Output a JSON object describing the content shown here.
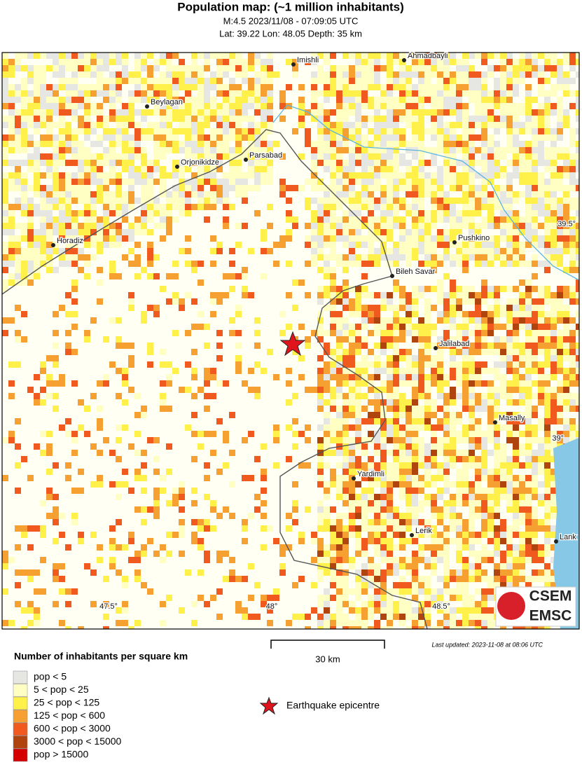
{
  "header": {
    "title": "Population map: (~1 million inhabitants)",
    "line1": "M:4.5 2023/11/08 - 07:09:05 UTC",
    "line2": "Lat: 39.22 Lon: 48.05 Depth: 35 km"
  },
  "map": {
    "cities": [
      "Imishli",
      "Ahmadbayli",
      "Beylagan",
      "Orjonikidze",
      "Parsabad",
      "Horadiz",
      "Pushkino",
      "Bileh Savar",
      "Jalilabad",
      "Masally",
      "Yardimli",
      "Lerik",
      "Lank"
    ],
    "lat_labels": [
      "39.5°",
      "39°"
    ],
    "lon_labels": [
      "47.5°",
      "48°",
      "48.5°"
    ],
    "scale": "30 km",
    "updated": "Last updated: 2023-11-08 at 08:06 UTC",
    "logo": {
      "top": "CSEM",
      "bottom": "EMSC"
    }
  },
  "legend": {
    "title": "Number of inhabitants per square km",
    "items": [
      {
        "label": "pop < 5",
        "color": "#e6e6e2"
      },
      {
        "label": "5 < pop < 25",
        "color": "#ffffc4"
      },
      {
        "label": "25 < pop < 125",
        "color": "#fff04a"
      },
      {
        "label": "125 < pop < 600",
        "color": "#f7a032"
      },
      {
        "label": "600 < pop < 3000",
        "color": "#f05a1e"
      },
      {
        "label": "3000 < pop < 15000",
        "color": "#b0440e"
      },
      {
        "label": "pop > 15000",
        "color": "#d40000"
      }
    ],
    "epicentre": "Earthquake epicentre"
  }
}
